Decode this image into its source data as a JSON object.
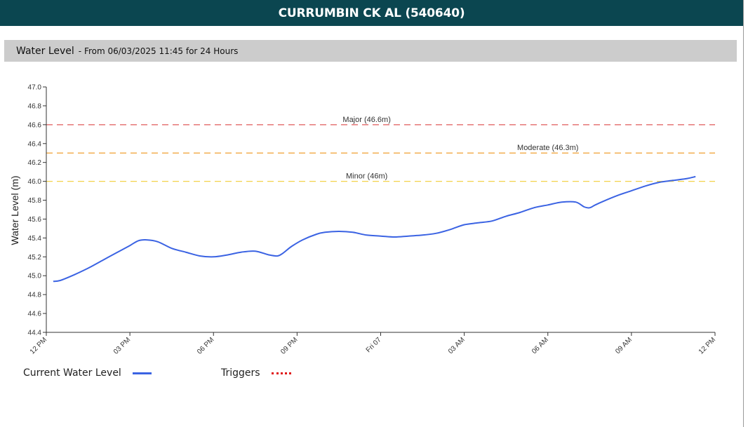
{
  "header": {
    "title": "CURRUMBIN CK AL (540640)"
  },
  "subheader": {
    "title": "Water Level",
    "subtitle": "- From 06/03/2025 11:45 for 24 Hours"
  },
  "legend": {
    "current_label": "Current Water Level",
    "triggers_label": "Triggers"
  },
  "colors": {
    "series": "#3b63e3",
    "major": "#e05a5a",
    "moderate": "#f0a030",
    "minor": "#f2d34a",
    "header_bg": "#0b4650"
  },
  "chart_data": {
    "type": "line",
    "ylabel": "Water Level (m)",
    "ylim": [
      44.4,
      47.0
    ],
    "y_ticks": [
      "44.4",
      "44.6",
      "44.8",
      "45.0",
      "45.2",
      "45.4",
      "45.6",
      "45.8",
      "46.0",
      "46.2",
      "46.4",
      "46.6",
      "46.8",
      "47.0"
    ],
    "x_ticks": [
      "12 PM",
      "03 PM",
      "06 PM",
      "09 PM",
      "Fri 07",
      "03 AM",
      "06 AM",
      "09 AM",
      "12 PM"
    ],
    "x_unit": "hours from 12 PM",
    "triggers": [
      {
        "label": "Major (46.6m)",
        "value": 46.6,
        "color": "#e05a5a",
        "label_x": 11.5
      },
      {
        "label": "Moderate (46.3m)",
        "value": 46.3,
        "color": "#f0a030",
        "label_x": 18
      },
      {
        "label": "Minor (46m)",
        "value": 46.0,
        "color": "#f2d34a",
        "label_x": 11.5
      }
    ],
    "series": [
      {
        "x": [
          0.25,
          0.5,
          1,
          1.5,
          2,
          2.5,
          3,
          3.3,
          3.6,
          4,
          4.5,
          5,
          5.5,
          6,
          6.5,
          7,
          7.5,
          8,
          8.3,
          8.5,
          8.8,
          9.2,
          9.7,
          10,
          10.5,
          11,
          11.5,
          12,
          12.5,
          13,
          13.5,
          14,
          14.5,
          15,
          15.5,
          16,
          16.5,
          17,
          17.5,
          18,
          18.5,
          19,
          19.3,
          19.5,
          19.7,
          20,
          20.5,
          21,
          21.5,
          22,
          22.5,
          23,
          23.3
        ],
        "y": [
          44.94,
          44.95,
          45.01,
          45.08,
          45.16,
          45.24,
          45.32,
          45.37,
          45.38,
          45.36,
          45.29,
          45.25,
          45.21,
          45.2,
          45.22,
          45.25,
          45.26,
          45.22,
          45.21,
          45.24,
          45.31,
          45.38,
          45.44,
          45.46,
          45.47,
          45.46,
          45.43,
          45.42,
          45.41,
          45.42,
          45.43,
          45.45,
          45.49,
          45.54,
          45.56,
          45.58,
          45.63,
          45.67,
          45.72,
          45.75,
          45.78,
          45.78,
          45.73,
          45.72,
          45.75,
          45.79,
          45.85,
          45.9,
          45.95,
          45.99,
          46.01,
          46.03,
          46.05
        ]
      }
    ]
  }
}
